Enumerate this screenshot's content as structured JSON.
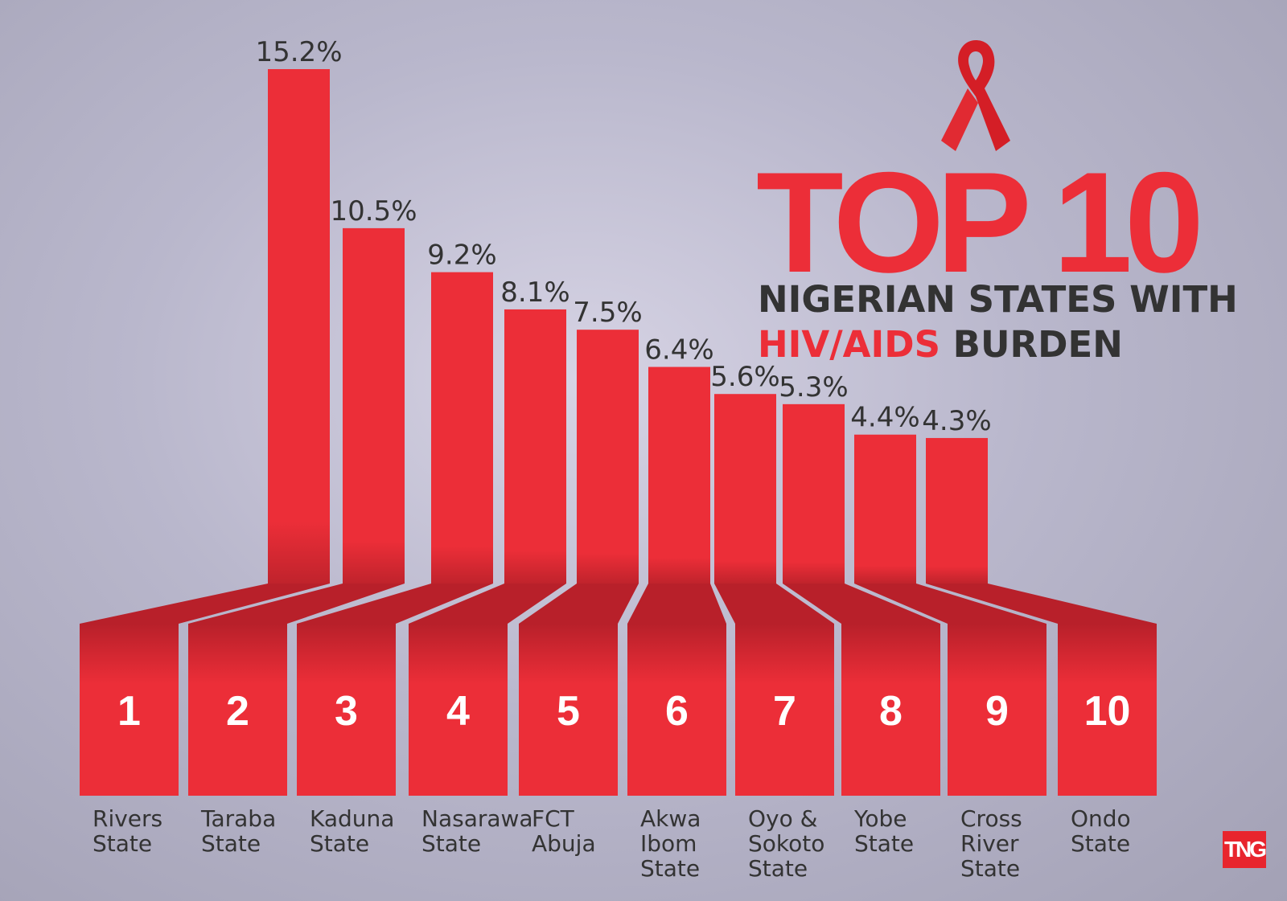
{
  "title": {
    "big": "TOP 10",
    "line1": "NIGERIAN STATES WITH",
    "line2_red": "HIV/AIDS",
    "line2_dark": " BURDEN"
  },
  "logo": "TNG",
  "colors": {
    "bar": "#ec2e38",
    "bar_dark": "#b8202a",
    "text": "#333333",
    "white": "#ffffff"
  },
  "chart_data": {
    "type": "bar",
    "title": "TOP 10 NIGERIAN STATES WITH HIV/AIDS BURDEN",
    "ranks": [
      "1",
      "2",
      "3",
      "4",
      "5",
      "6",
      "7",
      "8",
      "9",
      "10"
    ],
    "categories": [
      [
        "Rivers",
        "State"
      ],
      [
        "Taraba",
        "State"
      ],
      [
        "Kaduna",
        "State"
      ],
      [
        "Nasarawa",
        "State"
      ],
      [
        "FCT",
        "Abuja"
      ],
      [
        "Akwa",
        "Ibom",
        "State"
      ],
      [
        "Oyo &",
        "Sokoto",
        "State"
      ],
      [
        "Yobe",
        "State"
      ],
      [
        "Cross",
        "River",
        "State"
      ],
      [
        "Ondo",
        "State"
      ]
    ],
    "values": [
      15.2,
      10.5,
      9.2,
      8.1,
      7.5,
      6.4,
      5.6,
      5.3,
      4.4,
      4.3
    ],
    "value_labels": [
      "15.2%",
      "10.5%",
      "9.2%",
      "8.1%",
      "7.5%",
      "6.4%",
      "5.6%",
      "5.3%",
      "4.4%",
      "4.3%"
    ],
    "unit": "%",
    "ylim": [
      0,
      15.2
    ],
    "grid": false,
    "legend": "none"
  }
}
